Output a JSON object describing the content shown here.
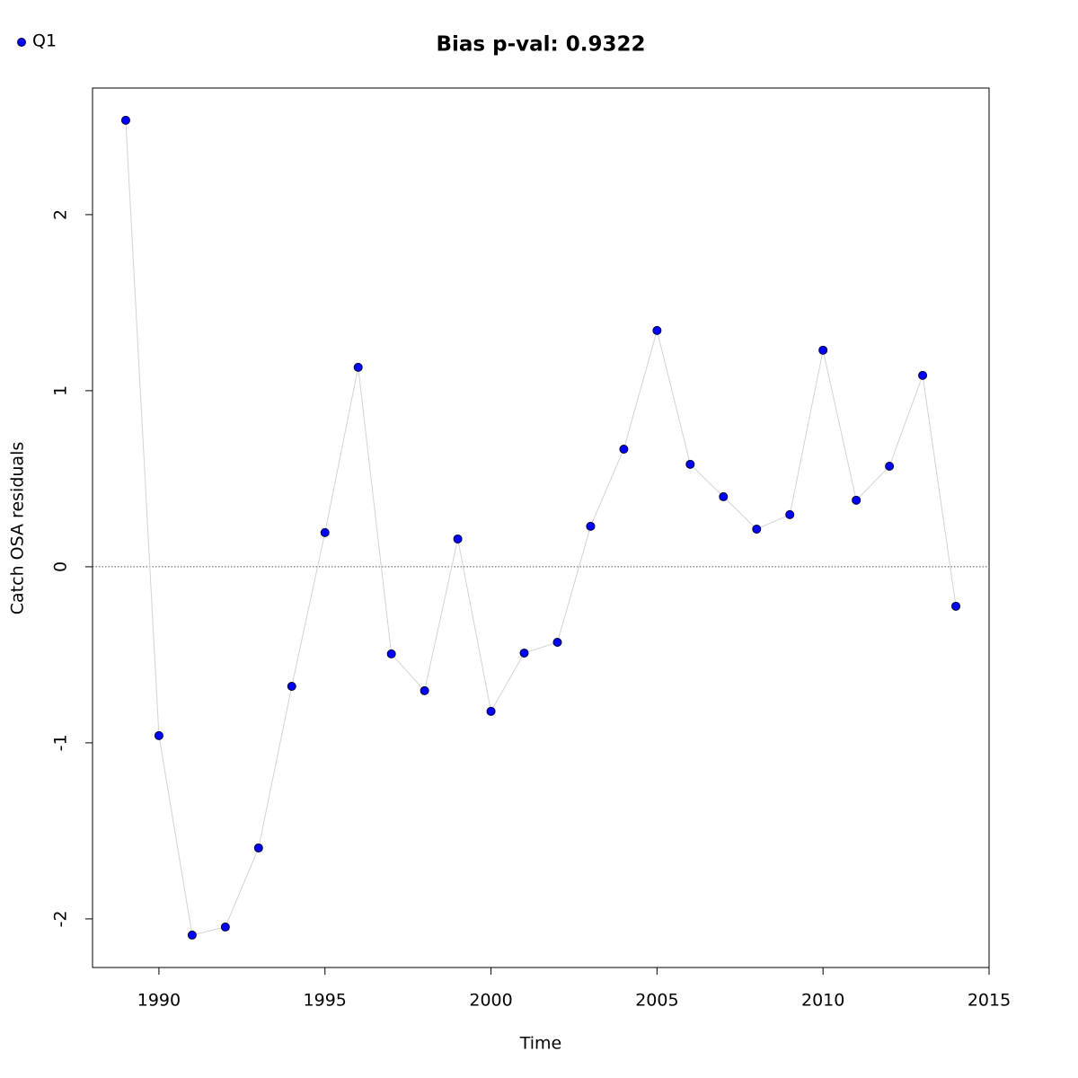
{
  "chart_data": {
    "type": "line",
    "title": "Bias p-val: 0.9322",
    "title_color": "#228b22",
    "xlabel": "Time",
    "ylabel": "Catch OSA residuals",
    "x": [
      1989,
      1990,
      1991,
      1992,
      1993,
      1994,
      1995,
      1996,
      1997,
      1998,
      1999,
      2000,
      2001,
      2002,
      2003,
      2004,
      2005,
      2006,
      2007,
      2008,
      2009,
      2010,
      2011,
      2012,
      2013,
      2014
    ],
    "series": [
      {
        "name": "Q1",
        "color": "#0000ff",
        "line_color": "#d3d3d3",
        "values": [
          2.536,
          -0.959,
          -2.092,
          -2.046,
          -1.597,
          -0.679,
          0.194,
          1.133,
          -0.495,
          -0.704,
          0.158,
          -0.821,
          -0.49,
          -0.429,
          0.23,
          0.668,
          1.342,
          0.582,
          0.398,
          0.214,
          0.296,
          1.23,
          0.378,
          0.571,
          1.087,
          -0.224
        ]
      }
    ],
    "hline": 0,
    "xlim": [
      1988,
      2015
    ],
    "ylim": [
      -2.276,
      2.719
    ],
    "xticks": [
      1990,
      1995,
      2000,
      2005,
      2010,
      2015
    ],
    "yticks": [
      -2,
      -1,
      0,
      1,
      2
    ],
    "legend": "top-left"
  }
}
